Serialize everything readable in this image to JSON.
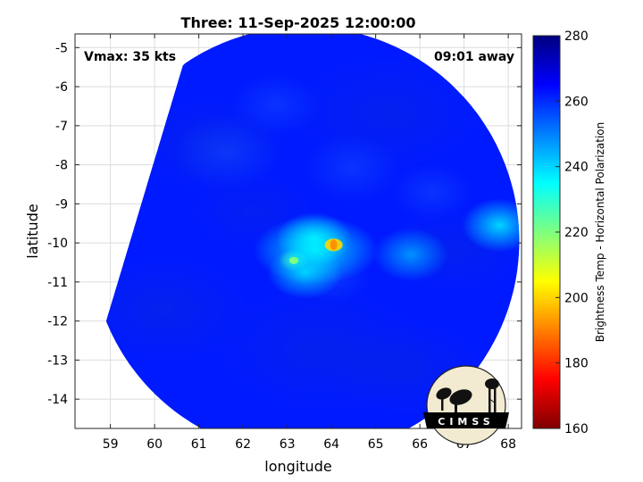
{
  "chart_data": {
    "type": "heatmap",
    "title": "Three: 11-Sep-2025 12:00:00",
    "xlabel": "longitude",
    "ylabel": "latitude",
    "xlim": [
      58.2,
      68.3
    ],
    "ylim": [
      -14.75,
      -4.65
    ],
    "x_ticks": [
      59,
      60,
      61,
      62,
      63,
      64,
      65,
      66,
      67,
      68
    ],
    "y_ticks": [
      -5,
      -6,
      -7,
      -8,
      -9,
      -10,
      -11,
      -12,
      -13,
      -14
    ],
    "grid": true,
    "annotations": {
      "vmax": "Vmax: 35 kts",
      "time_offset": "09:01 away"
    },
    "colorbar": {
      "label": "Brightness Temp - Horizontal Polarization",
      "range": [
        160,
        280
      ],
      "ticks": [
        280,
        260,
        240,
        220,
        200,
        180,
        160
      ],
      "colormap": "jet"
    },
    "swath_center": [
      63.4,
      -9.95
    ],
    "swath_radius_deg": 4.85,
    "swath_west_edge": [
      [
        60.6,
        -5.6
      ],
      [
        58.85,
        -12.2
      ]
    ],
    "background_tb": 262,
    "features": [
      {
        "lon": 64.05,
        "lat": -10.05,
        "tb": 192
      },
      {
        "lon": 63.15,
        "lat": -10.45,
        "tb": 220
      },
      {
        "lon": 63.6,
        "lat": -9.9,
        "tb": 238
      },
      {
        "lon": 63.4,
        "lat": -10.75,
        "tb": 242
      },
      {
        "lon": 67.8,
        "lat": -9.55,
        "tb": 240
      },
      {
        "lon": 65.8,
        "lat": -10.3,
        "tb": 248
      }
    ]
  },
  "logo": {
    "text": "CIMSS"
  }
}
